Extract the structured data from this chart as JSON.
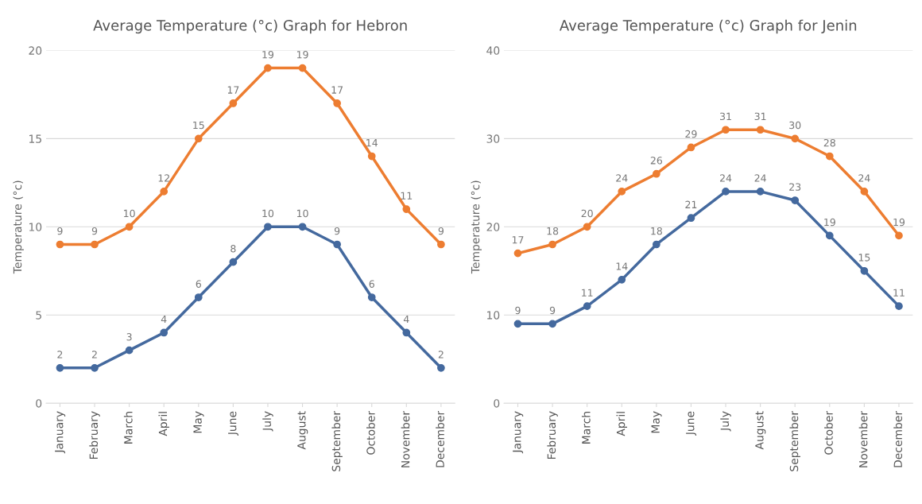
{
  "chart_data": [
    {
      "type": "line",
      "title": "Average Temperature (°c) Graph for Hebron",
      "ylabel": "Temperature (°c)",
      "categories": [
        "January",
        "February",
        "March",
        "April",
        "May",
        "June",
        "July",
        "August",
        "September",
        "October",
        "November",
        "December"
      ],
      "series": [
        {
          "color": "#ed7d31",
          "values": [
            9,
            9,
            10,
            12,
            15,
            17,
            19,
            19,
            17,
            14,
            11,
            9
          ]
        },
        {
          "color": "#44699e",
          "values": [
            2,
            2,
            3,
            4,
            6,
            8,
            10,
            10,
            9,
            6,
            4,
            2
          ]
        }
      ],
      "ylim": [
        0,
        20
      ],
      "yticks": [
        0,
        5,
        10,
        15,
        20
      ],
      "grid": "y",
      "marker": "circle",
      "data_labels": true
    },
    {
      "type": "line",
      "title": "Average Temperature (°c) Graph for Jenin",
      "ylabel": "Temperature (°c)",
      "categories": [
        "January",
        "February",
        "March",
        "April",
        "May",
        "June",
        "July",
        "August",
        "September",
        "October",
        "November",
        "December"
      ],
      "series": [
        {
          "color": "#ed7d31",
          "values": [
            17,
            18,
            20,
            24,
            26,
            29,
            31,
            31,
            30,
            28,
            24,
            19
          ]
        },
        {
          "color": "#44699e",
          "values": [
            9,
            9,
            11,
            14,
            18,
            21,
            24,
            24,
            23,
            19,
            15,
            11
          ]
        }
      ],
      "ylim": [
        0,
        40
      ],
      "yticks": [
        0,
        10,
        20,
        30,
        40
      ],
      "grid": "y",
      "marker": "circle",
      "data_labels": true
    }
  ]
}
